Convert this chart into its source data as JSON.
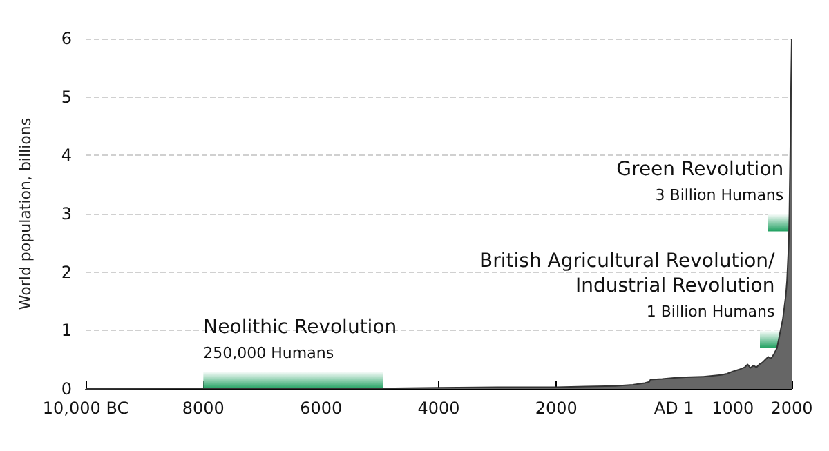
{
  "chart_data": {
    "type": "area",
    "ylabel": "World population, billions",
    "x": [
      -10000,
      -8000,
      -6000,
      -5000,
      -4000,
      -3000,
      -2000,
      -1500,
      -1000,
      -700,
      -500,
      -420,
      -400,
      -200,
      0,
      200,
      500,
      800,
      900,
      1000,
      1100,
      1200,
      1250,
      1300,
      1350,
      1400,
      1450,
      1500,
      1550,
      1600,
      1650,
      1700,
      1750,
      1800,
      1850,
      1900,
      1920,
      1950,
      1960,
      1970,
      1980,
      1990,
      2000
    ],
    "series": [
      {
        "color": "#666666",
        "values": [
          0.0,
          0.01,
          0.01,
          0.01,
          0.02,
          0.03,
          0.03,
          0.04,
          0.05,
          0.07,
          0.1,
          0.12,
          0.16,
          0.17,
          0.19,
          0.2,
          0.21,
          0.24,
          0.26,
          0.3,
          0.33,
          0.37,
          0.42,
          0.36,
          0.4,
          0.37,
          0.42,
          0.45,
          0.5,
          0.55,
          0.52,
          0.6,
          0.7,
          0.95,
          1.2,
          1.6,
          1.85,
          2.5,
          3.0,
          3.7,
          4.4,
          5.3,
          6.0
        ]
      }
    ],
    "xlim": [
      -10000,
      2000
    ],
    "xticks": [
      {
        "value": -10000,
        "label": "10,000 BC"
      },
      {
        "value": -8000,
        "label": "8000"
      },
      {
        "value": -6000,
        "label": "6000"
      },
      {
        "value": -4000,
        "label": "4000"
      },
      {
        "value": -2000,
        "label": "2000"
      },
      {
        "value": 0,
        "label": "AD 1"
      },
      1000,
      2000
    ],
    "ylim": [
      0,
      6
    ],
    "yticks": [
      0,
      1,
      2,
      3,
      4,
      5,
      6
    ],
    "grid": "y",
    "bands": [
      {
        "axis": "x",
        "from": -8000,
        "to": -4950,
        "label": "Neolithic Revolution",
        "color": "#1fa060"
      },
      {
        "axis": "x",
        "from": 1460,
        "to": 1830,
        "label": "British Agricultural Revolution/\nIndustrial Revolution",
        "color": "#1fa060"
      },
      {
        "axis": "x",
        "from": 1600,
        "to": 1980,
        "label": "Green Revolution",
        "color": "#1fa060"
      }
    ],
    "annotations": [
      {
        "text": "250,000 Humans",
        "x": -8000,
        "y": 0.15
      },
      {
        "text": "1 Billion Humans",
        "x": 1830,
        "y": 0.85
      },
      {
        "text": "3 Billion Humans",
        "x": 1980,
        "y": 2.85
      }
    ]
  }
}
